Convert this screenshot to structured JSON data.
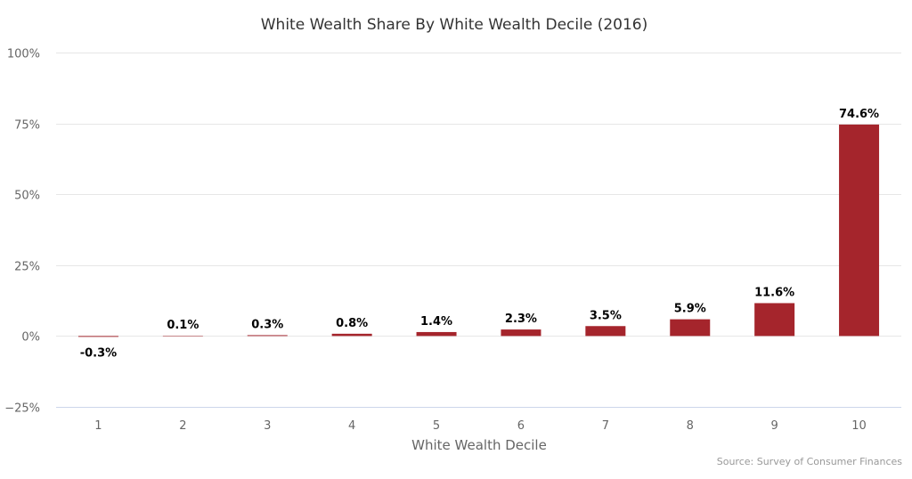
{
  "chart_data": {
    "type": "bar",
    "title": "White Wealth Share By White Wealth Decile (2016)",
    "xlabel": "White Wealth Decile",
    "ylabel": "",
    "categories": [
      "1",
      "2",
      "3",
      "4",
      "5",
      "6",
      "7",
      "8",
      "9",
      "10"
    ],
    "values": [
      -0.3,
      0.1,
      0.3,
      0.8,
      1.4,
      2.3,
      3.5,
      5.9,
      11.6,
      74.6
    ],
    "data_labels": [
      "-0.3%",
      "0.1%",
      "0.3%",
      "0.8%",
      "1.4%",
      "2.3%",
      "3.5%",
      "5.9%",
      "11.6%",
      "74.6%"
    ],
    "y_ticks": [
      -25,
      0,
      25,
      50,
      75,
      100
    ],
    "y_tick_labels": [
      "−25%",
      "0%",
      "25%",
      "50%",
      "75%",
      "100%"
    ],
    "ylim": [
      -25,
      100
    ],
    "grid": true,
    "legend": "none",
    "bar_color": "#a5252c",
    "credit": "Source: Survey of Consumer Finances"
  }
}
